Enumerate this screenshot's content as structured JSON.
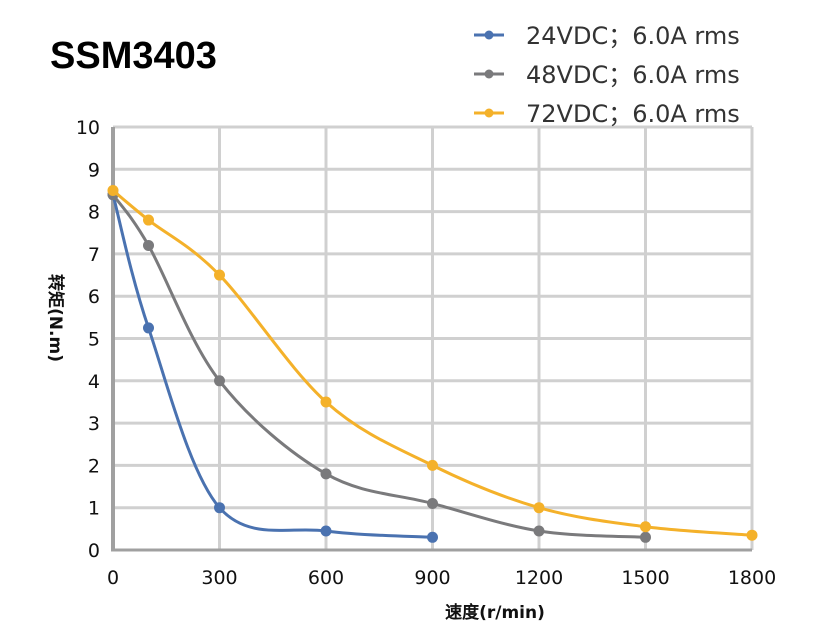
{
  "chart_data": {
    "type": "line",
    "title": "SSM3403",
    "xlabel": "速度(r/min)",
    "ylabel": "转矩(N.m)",
    "xlim": [
      0,
      1800
    ],
    "ylim": [
      0,
      10
    ],
    "xticks": [
      0,
      300,
      600,
      900,
      1200,
      1500,
      1800
    ],
    "yticks": [
      0,
      1,
      2,
      3,
      4,
      5,
      6,
      7,
      8,
      9,
      10
    ],
    "grid": true,
    "legend_position": "top-right",
    "series": [
      {
        "name": "24VDC；6.0A rms",
        "color": "#4a72b0",
        "x": [
          0,
          100,
          300,
          600,
          900
        ],
        "y": [
          8.4,
          5.25,
          1.0,
          0.45,
          0.3
        ]
      },
      {
        "name": "48VDC；6.0A rms",
        "color": "#7a7a7c",
        "x": [
          0,
          100,
          300,
          600,
          900,
          1200,
          1500
        ],
        "y": [
          8.4,
          7.2,
          4.0,
          1.8,
          1.1,
          0.45,
          0.3
        ]
      },
      {
        "name": "72VDC；6.0A rms",
        "color": "#f4b12a",
        "x": [
          0,
          100,
          300,
          600,
          900,
          1200,
          1500,
          1800
        ],
        "y": [
          8.5,
          7.8,
          6.5,
          3.5,
          2.0,
          1.0,
          0.55,
          0.35
        ]
      }
    ]
  }
}
